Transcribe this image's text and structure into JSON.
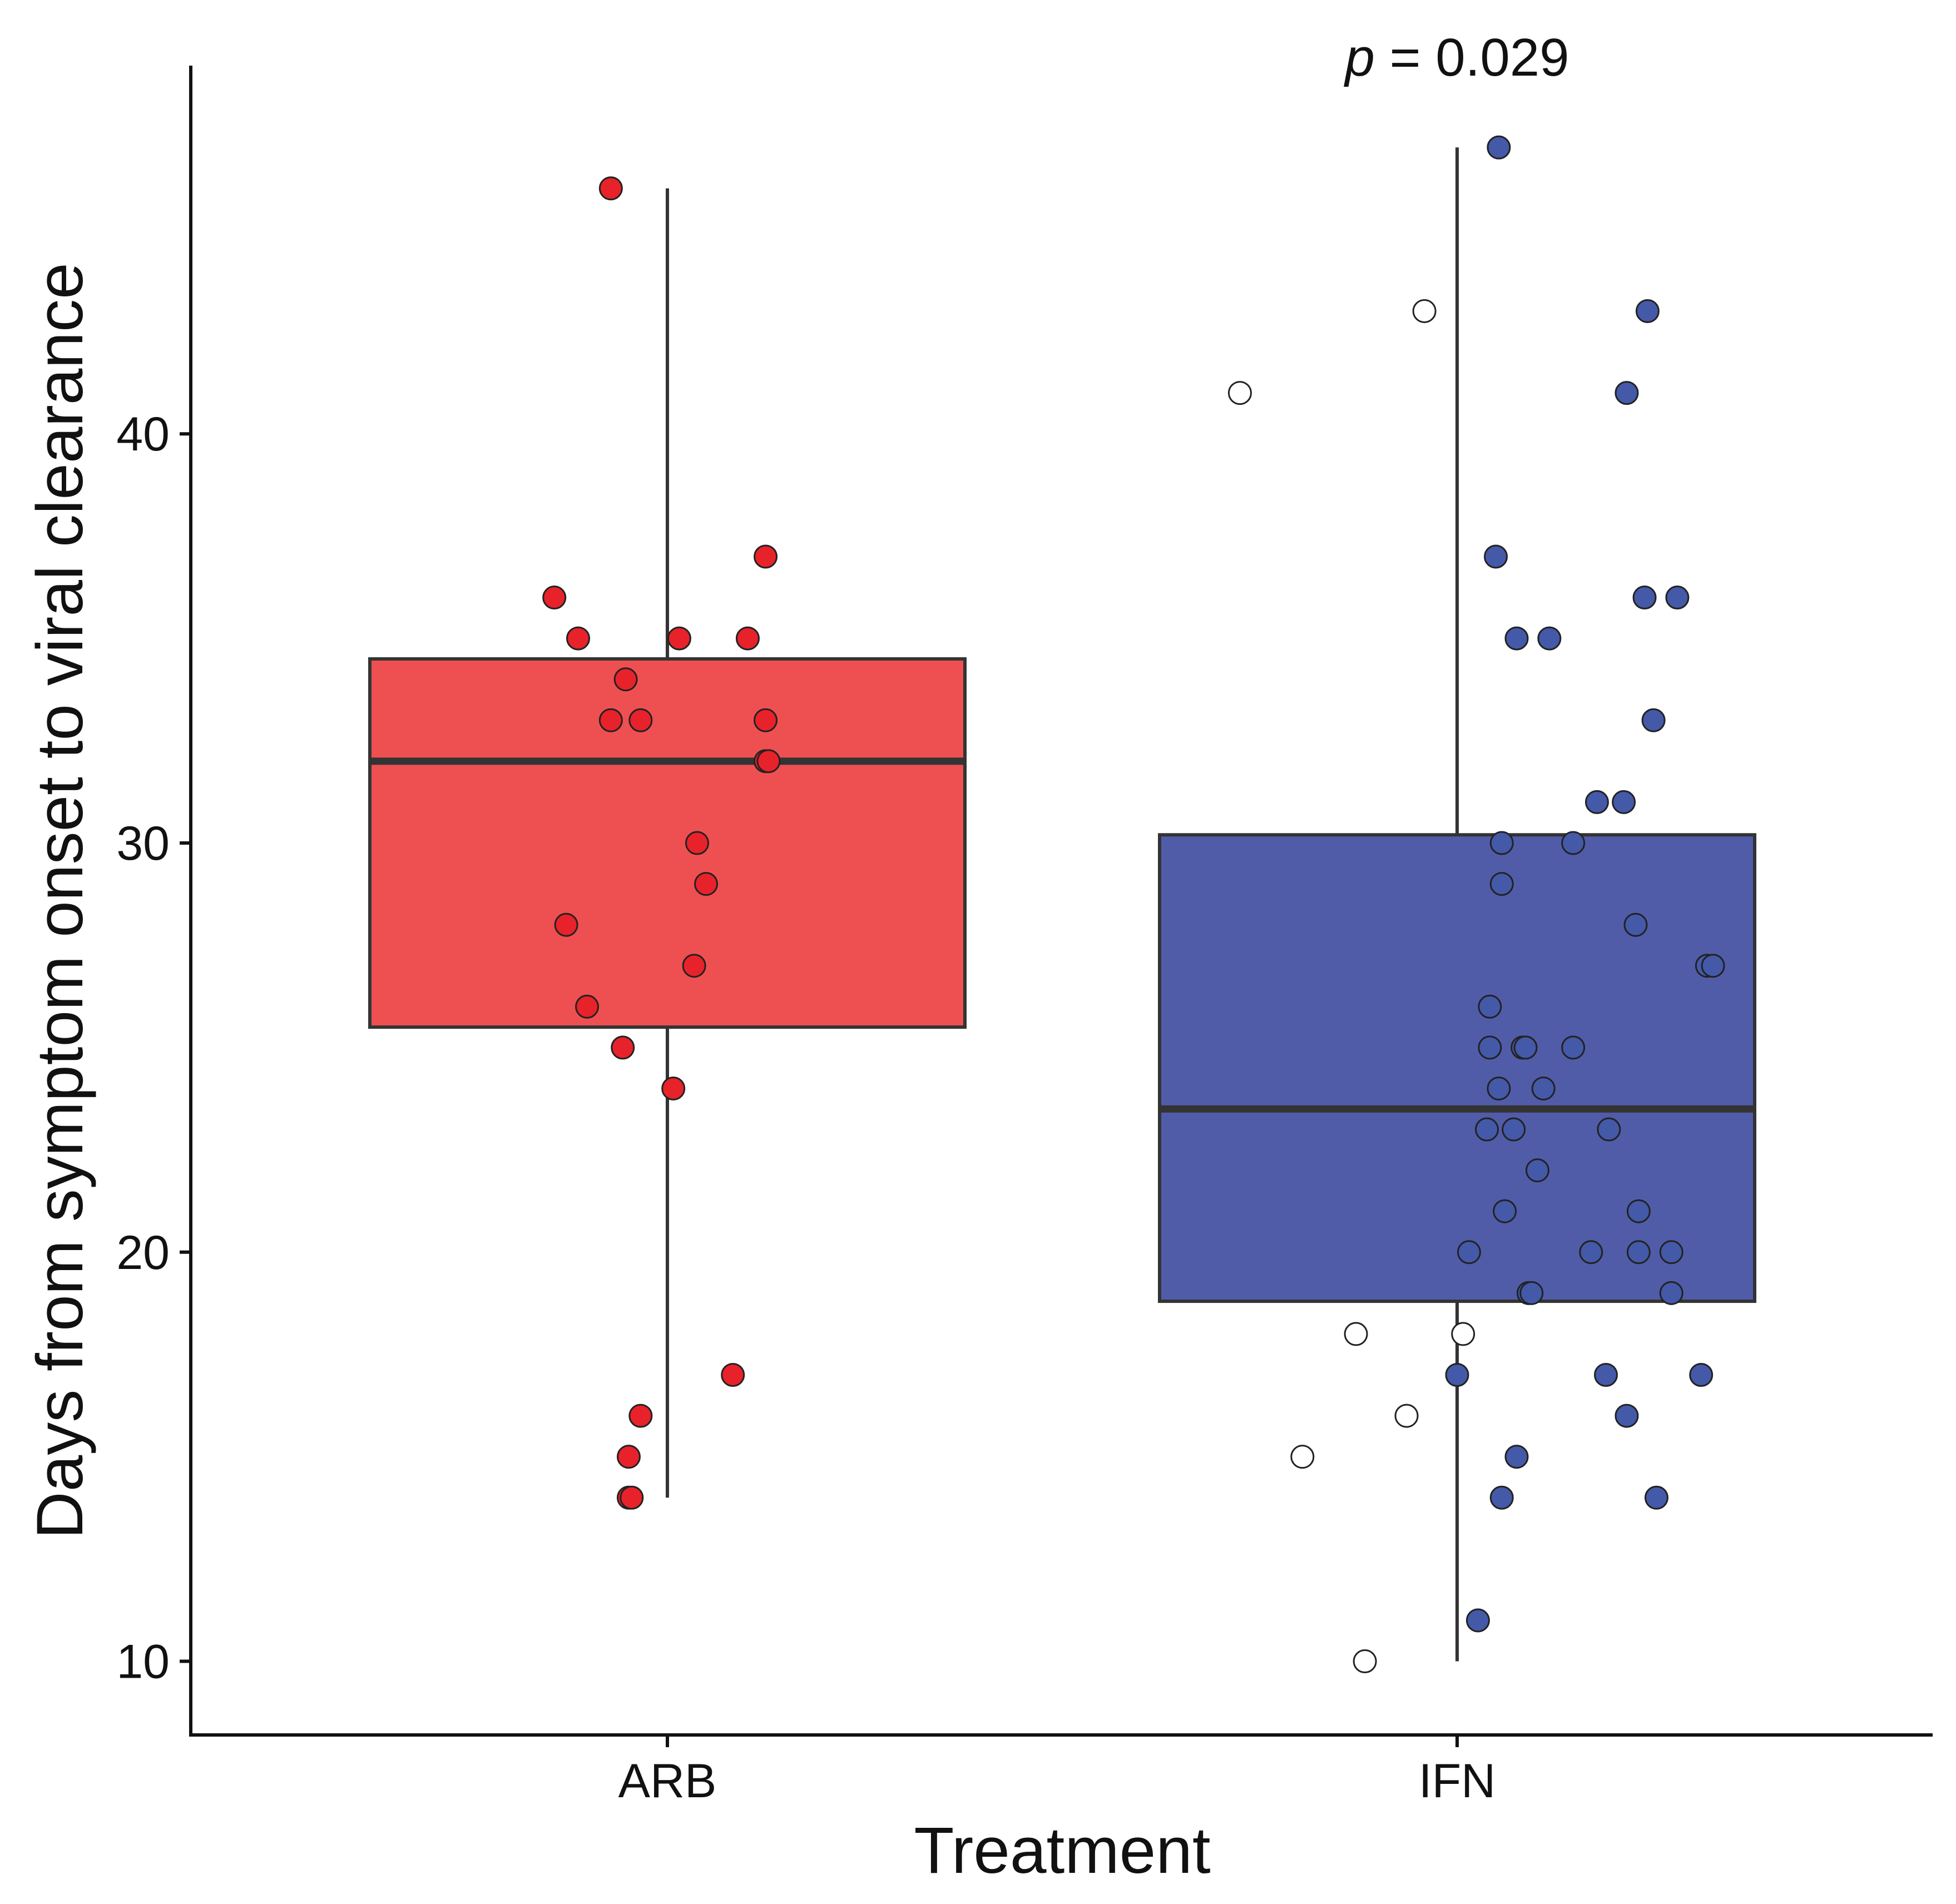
{
  "chart_data": {
    "type": "box",
    "xlabel": "Treatment",
    "ylabel": "Days from symptom onset to viral clearance",
    "annotation": "p = 0.029",
    "annotation_italic": "p",
    "annotation_rest": " = 0.029",
    "ylim": [
      8.2,
      49.0
    ],
    "yticks": [
      10,
      20,
      30,
      40
    ],
    "categories": [
      "ARB",
      "IFN"
    ],
    "boxes": [
      {
        "name": "ARB",
        "color": "#ee5052",
        "point_color": "#e8222a",
        "whisker_low": 14,
        "q1": 25.5,
        "median": 32,
        "q3": 34.5,
        "whisker_high": 46,
        "points": [
          {
            "dx": -0.19,
            "y": 46
          },
          {
            "dx": 0.33,
            "y": 37
          },
          {
            "dx": -0.38,
            "y": 36
          },
          {
            "dx": -0.3,
            "y": 35
          },
          {
            "dx": 0.04,
            "y": 35
          },
          {
            "dx": 0.27,
            "y": 35
          },
          {
            "dx": -0.14,
            "y": 34
          },
          {
            "dx": -0.19,
            "y": 33
          },
          {
            "dx": -0.09,
            "y": 33
          },
          {
            "dx": 0.33,
            "y": 33
          },
          {
            "dx": 0.33,
            "y": 32
          },
          {
            "dx": 0.34,
            "y": 32
          },
          {
            "dx": 0.1,
            "y": 30
          },
          {
            "dx": 0.13,
            "y": 29
          },
          {
            "dx": -0.34,
            "y": 28
          },
          {
            "dx": 0.09,
            "y": 27
          },
          {
            "dx": -0.27,
            "y": 26
          },
          {
            "dx": -0.15,
            "y": 25
          },
          {
            "dx": 0.02,
            "y": 24
          },
          {
            "dx": 0.22,
            "y": 17
          },
          {
            "dx": -0.09,
            "y": 16
          },
          {
            "dx": -0.13,
            "y": 15
          },
          {
            "dx": -0.13,
            "y": 14
          },
          {
            "dx": -0.12,
            "y": 14
          }
        ]
      },
      {
        "name": "IFN",
        "color": "#515ca9",
        "point_color": "#4459a8",
        "whisker_low": 10,
        "q1": 18.8,
        "median": 23.5,
        "q3": 30.2,
        "whisker_high": 47,
        "points": [
          {
            "dx": 0.14,
            "y": 47,
            "fill": "blue"
          },
          {
            "dx": -0.11,
            "y": 43,
            "fill": "white"
          },
          {
            "dx": 0.64,
            "y": 43,
            "fill": "blue"
          },
          {
            "dx": -0.73,
            "y": 41,
            "fill": "white"
          },
          {
            "dx": 0.57,
            "y": 41,
            "fill": "blue"
          },
          {
            "dx": 0.13,
            "y": 37,
            "fill": "blue"
          },
          {
            "dx": 0.63,
            "y": 36,
            "fill": "blue"
          },
          {
            "dx": 0.74,
            "y": 36,
            "fill": "blue"
          },
          {
            "dx": 0.2,
            "y": 35,
            "fill": "blue"
          },
          {
            "dx": 0.31,
            "y": 35,
            "fill": "blue"
          },
          {
            "dx": 0.66,
            "y": 33,
            "fill": "blue"
          },
          {
            "dx": 0.47,
            "y": 31,
            "fill": "blue"
          },
          {
            "dx": 0.56,
            "y": 31,
            "fill": "blue"
          },
          {
            "dx": 0.15,
            "y": 30,
            "fill": "blue"
          },
          {
            "dx": 0.39,
            "y": 30,
            "fill": "blue"
          },
          {
            "dx": 0.15,
            "y": 29,
            "fill": "blue"
          },
          {
            "dx": 0.6,
            "y": 28,
            "fill": "blue"
          },
          {
            "dx": 0.84,
            "y": 27,
            "fill": "blue"
          },
          {
            "dx": 0.86,
            "y": 27,
            "fill": "blue"
          },
          {
            "dx": 0.11,
            "y": 26,
            "fill": "blue"
          },
          {
            "dx": 0.11,
            "y": 25,
            "fill": "blue"
          },
          {
            "dx": 0.22,
            "y": 25,
            "fill": "blue"
          },
          {
            "dx": 0.23,
            "y": 25,
            "fill": "blue"
          },
          {
            "dx": 0.39,
            "y": 25,
            "fill": "blue"
          },
          {
            "dx": 0.14,
            "y": 24,
            "fill": "blue"
          },
          {
            "dx": 0.29,
            "y": 24,
            "fill": "blue"
          },
          {
            "dx": 0.1,
            "y": 23,
            "fill": "blue"
          },
          {
            "dx": 0.19,
            "y": 23,
            "fill": "blue"
          },
          {
            "dx": 0.51,
            "y": 23,
            "fill": "blue"
          },
          {
            "dx": 0.27,
            "y": 22,
            "fill": "blue"
          },
          {
            "dx": 0.16,
            "y": 21,
            "fill": "blue"
          },
          {
            "dx": 0.61,
            "y": 21,
            "fill": "blue"
          },
          {
            "dx": 0.04,
            "y": 20,
            "fill": "blue"
          },
          {
            "dx": 0.45,
            "y": 20,
            "fill": "blue"
          },
          {
            "dx": 0.61,
            "y": 20,
            "fill": "blue"
          },
          {
            "dx": 0.72,
            "y": 20,
            "fill": "blue"
          },
          {
            "dx": 0.24,
            "y": 19,
            "fill": "blue"
          },
          {
            "dx": 0.25,
            "y": 19,
            "fill": "blue"
          },
          {
            "dx": 0.72,
            "y": 19,
            "fill": "blue"
          },
          {
            "dx": -0.34,
            "y": 18,
            "fill": "white"
          },
          {
            "dx": 0.02,
            "y": 18,
            "fill": "white"
          },
          {
            "dx": 0.0,
            "y": 17,
            "fill": "blue"
          },
          {
            "dx": 0.5,
            "y": 17,
            "fill": "blue"
          },
          {
            "dx": 0.82,
            "y": 17,
            "fill": "blue"
          },
          {
            "dx": -0.17,
            "y": 16,
            "fill": "white"
          },
          {
            "dx": 0.57,
            "y": 16,
            "fill": "blue"
          },
          {
            "dx": -0.52,
            "y": 15,
            "fill": "white"
          },
          {
            "dx": 0.2,
            "y": 15,
            "fill": "blue"
          },
          {
            "dx": 0.15,
            "y": 14,
            "fill": "blue"
          },
          {
            "dx": 0.67,
            "y": 14,
            "fill": "blue"
          },
          {
            "dx": 0.07,
            "y": 11,
            "fill": "blue"
          },
          {
            "dx": -0.31,
            "y": 10,
            "fill": "white"
          }
        ]
      }
    ]
  }
}
